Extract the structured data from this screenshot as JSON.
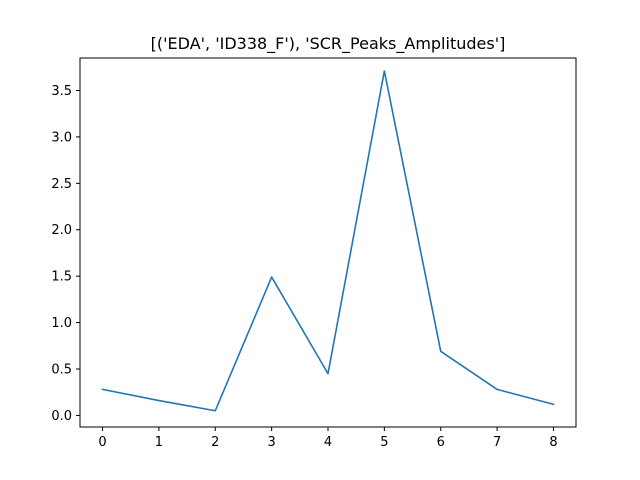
{
  "chart_data": {
    "type": "line",
    "title": "[('EDA', 'ID338_F'), 'SCR_Peaks_Amplitudes']",
    "xlabel": "",
    "ylabel": "",
    "x": [
      0,
      1,
      2,
      3,
      4,
      5,
      6,
      7,
      8
    ],
    "series": [
      {
        "values": [
          0.28,
          0.16,
          0.05,
          1.49,
          0.45,
          3.71,
          0.69,
          0.28,
          0.12
        ],
        "color": "#1f77b4"
      }
    ],
    "xlim": [
      -0.4,
      8.4
    ],
    "ylim": [
      -0.125,
      3.85
    ],
    "xticks": [
      "0",
      "1",
      "2",
      "3",
      "4",
      "5",
      "6",
      "7",
      "8"
    ],
    "yticks": [
      "0.0",
      "0.5",
      "1.0",
      "1.5",
      "2.0",
      "2.5",
      "3.0",
      "3.5"
    ],
    "grid": false,
    "legend": "none"
  }
}
